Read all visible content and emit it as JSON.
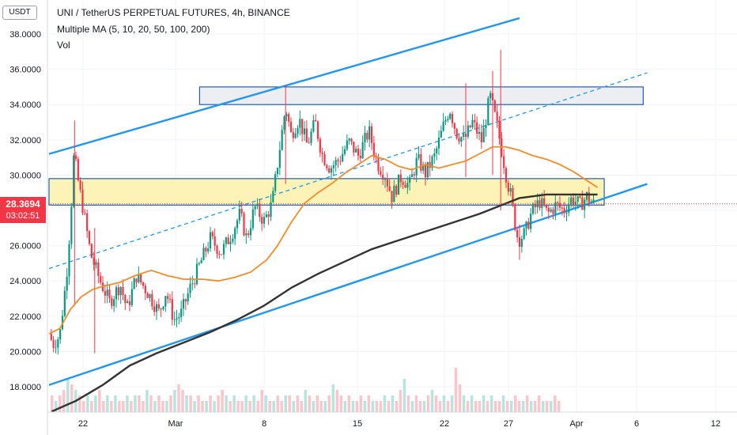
{
  "chart_data": {
    "type": "candlestick",
    "title": "UNI / TetherUS PERPETUAL FUTURES, 4h, BINANCE",
    "indicators": [
      "Multiple MA (5, 10, 20, 50, 100, 200)",
      "Vol"
    ],
    "currency": "USDT",
    "last_price": "28.3694",
    "countdown": "03:02:51",
    "y_axis": {
      "range": [
        16.5,
        39.0
      ],
      "ticks": [
        38,
        36,
        34,
        32,
        30,
        28,
        26,
        24,
        22,
        20,
        18
      ],
      "tick_labels": [
        "38.0000",
        "36.0000",
        "34.0000",
        "32.0000",
        "30.0000",
        "28.0000",
        "26.0000",
        "24.0000",
        "22.0000",
        "20.0000",
        "18.0000"
      ]
    },
    "x_axis": {
      "tick_labels": [
        "22",
        "Mar",
        "8",
        "15",
        "22",
        "27",
        "Apr",
        "6",
        "12"
      ]
    },
    "price_path": [
      [
        0,
        21.0
      ],
      [
        0.3,
        20.4
      ],
      [
        0.8,
        20.9
      ],
      [
        1.3,
        24.3
      ],
      [
        1.6,
        27.5
      ],
      [
        1.85,
        31.2
      ],
      [
        2.2,
        29.5
      ],
      [
        2.6,
        27.8
      ],
      [
        3.1,
        25.5
      ],
      [
        3.8,
        24.0
      ],
      [
        4.5,
        22.8
      ],
      [
        5.3,
        23.8
      ],
      [
        5.8,
        22.4
      ],
      [
        6.5,
        24.3
      ],
      [
        7.3,
        23.4
      ],
      [
        8.2,
        22.2
      ],
      [
        8.7,
        23.4
      ],
      [
        9.3,
        21.8
      ],
      [
        9.8,
        22.1
      ],
      [
        10.5,
        23.6
      ],
      [
        11.2,
        24.9
      ],
      [
        12.0,
        26.4
      ],
      [
        12.8,
        25.6
      ],
      [
        13.6,
        26.7
      ],
      [
        14.2,
        27.8
      ],
      [
        14.7,
        26.4
      ],
      [
        15.3,
        28.2
      ],
      [
        16.0,
        27.4
      ],
      [
        16.6,
        28.4
      ],
      [
        17.1,
        31.2
      ],
      [
        17.6,
        33.9
      ],
      [
        18.0,
        32.3
      ],
      [
        18.6,
        33.2
      ],
      [
        19.2,
        31.7
      ],
      [
        19.8,
        33.0
      ],
      [
        20.3,
        31.2
      ],
      [
        20.9,
        30.4
      ],
      [
        21.6,
        30.9
      ],
      [
        22.3,
        31.9
      ],
      [
        23.0,
        31.1
      ],
      [
        23.8,
        32.5
      ],
      [
        24.4,
        30.7
      ],
      [
        25.0,
        30.0
      ],
      [
        25.5,
        28.8
      ],
      [
        26.2,
        29.9
      ],
      [
        26.8,
        29.4
      ],
      [
        27.4,
        30.9
      ],
      [
        28.0,
        30.1
      ],
      [
        28.7,
        31.1
      ],
      [
        29.3,
        32.7
      ],
      [
        29.8,
        33.8
      ],
      [
        30.3,
        32.4
      ],
      [
        30.9,
        32.0
      ],
      [
        31.5,
        33.0
      ],
      [
        32.2,
        31.9
      ],
      [
        32.8,
        34.5
      ],
      [
        33.3,
        32.9
      ],
      [
        33.7,
        31.3
      ],
      [
        34.1,
        29.6
      ],
      [
        34.4,
        28.7
      ],
      [
        34.6,
        27.5
      ],
      [
        34.9,
        26.3
      ],
      [
        35.4,
        26.7
      ],
      [
        35.9,
        27.9
      ],
      [
        36.5,
        28.5
      ],
      [
        37.1,
        27.8
      ],
      [
        37.7,
        28.3
      ],
      [
        38.3,
        28.0
      ],
      [
        38.9,
        28.7
      ],
      [
        39.5,
        28.3
      ],
      [
        40.0,
        28.8
      ],
      [
        40.5,
        28.37
      ]
    ],
    "wicks": [
      [
        1.9,
        22.6,
        33.1
      ],
      [
        3.4,
        19.9,
        27.0
      ],
      [
        17.6,
        29.5,
        35.1
      ],
      [
        31.0,
        29.9,
        35.2
      ],
      [
        33.0,
        30.0,
        35.9
      ],
      [
        33.6,
        28.0,
        37.1
      ],
      [
        35.0,
        25.2,
        27.2
      ]
    ],
    "ma50": [
      [
        0,
        21.0
      ],
      [
        0.8,
        21.3
      ],
      [
        1.6,
        22.4
      ],
      [
        2.4,
        23.1
      ],
      [
        3.2,
        23.5
      ],
      [
        4.0,
        23.7
      ],
      [
        5.2,
        23.9
      ],
      [
        6.4,
        24.3
      ],
      [
        7.6,
        24.6
      ],
      [
        8.8,
        24.3
      ],
      [
        10.0,
        24.1
      ],
      [
        11.4,
        24.1
      ],
      [
        12.6,
        24.0
      ],
      [
        13.8,
        24.2
      ],
      [
        15.0,
        24.5
      ],
      [
        16.2,
        25.2
      ],
      [
        17.0,
        26.0
      ],
      [
        18.0,
        27.3
      ],
      [
        19.0,
        28.4
      ],
      [
        20.0,
        29.0
      ],
      [
        21.0,
        29.5
      ],
      [
        22.0,
        30.1
      ],
      [
        23.0,
        30.6
      ],
      [
        24.0,
        31.1
      ],
      [
        25.0,
        30.9
      ],
      [
        26.0,
        30.5
      ],
      [
        27.0,
        30.3
      ],
      [
        28.0,
        30.6
      ],
      [
        29.0,
        30.4
      ],
      [
        30.0,
        30.6
      ],
      [
        31.0,
        30.8
      ],
      [
        32.0,
        31.2
      ],
      [
        33.0,
        31.6
      ],
      [
        34.0,
        31.6
      ],
      [
        35.0,
        31.4
      ],
      [
        36.0,
        31.1
      ],
      [
        37.0,
        30.9
      ],
      [
        38.0,
        30.6
      ],
      [
        39.0,
        30.2
      ],
      [
        40.0,
        29.7
      ],
      [
        40.8,
        29.3
      ]
    ],
    "ma200": [
      [
        0.2,
        16.6
      ],
      [
        2.0,
        17.2
      ],
      [
        4.0,
        18.1
      ],
      [
        6.0,
        19.2
      ],
      [
        8.0,
        19.9
      ],
      [
        10.0,
        20.5
      ],
      [
        12.0,
        21.1
      ],
      [
        14.0,
        21.8
      ],
      [
        16.0,
        22.6
      ],
      [
        18.0,
        23.6
      ],
      [
        20.0,
        24.4
      ],
      [
        22.0,
        25.1
      ],
      [
        24.0,
        25.8
      ],
      [
        26.0,
        26.3
      ],
      [
        28.0,
        26.8
      ],
      [
        30.0,
        27.3
      ],
      [
        32.0,
        27.8
      ],
      [
        34.0,
        28.4
      ],
      [
        35.0,
        28.7
      ],
      [
        36.0,
        28.8
      ],
      [
        37.0,
        28.9
      ],
      [
        38.5,
        28.9
      ],
      [
        40.0,
        28.9
      ],
      [
        40.8,
        28.9
      ]
    ],
    "trend_lines": {
      "upper_channel": [
        [
          0,
          31.2
        ],
        [
          35.0,
          38.9
        ]
      ],
      "lower_channel": [
        [
          0,
          18.1
        ],
        [
          44.5,
          29.5
        ]
      ],
      "mid_dashed": [
        [
          0,
          24.7
        ],
        [
          44.5,
          35.8
        ]
      ]
    },
    "zones": [
      {
        "name": "resistance",
        "x": [
          11.2,
          44.2
        ],
        "y": [
          34.0,
          35.0
        ],
        "fill": "#eceef2"
      },
      {
        "name": "support",
        "x": [
          0,
          41.3
        ],
        "y": [
          28.3,
          29.8
        ],
        "fill": "#fdf3b6"
      }
    ],
    "volume": [
      3,
      2,
      3,
      4,
      6,
      5,
      4,
      3,
      2,
      3,
      2,
      3,
      4,
      2,
      3,
      2,
      3,
      2,
      2,
      3,
      2,
      3,
      3,
      2,
      4,
      3,
      2,
      3,
      2,
      2,
      3,
      4,
      5,
      4,
      3,
      3,
      2,
      3,
      2,
      2,
      3,
      2,
      3,
      4,
      3,
      2,
      3,
      2,
      2,
      3,
      2,
      3,
      2,
      4,
      3,
      2,
      2,
      3,
      2,
      3,
      3,
      2,
      3,
      2,
      4,
      3,
      2,
      3,
      2,
      2,
      3,
      5,
      4,
      3,
      2,
      3,
      2,
      2,
      3,
      2,
      3,
      2,
      2,
      2,
      3,
      2,
      3,
      2,
      4,
      6,
      3,
      2,
      3,
      2,
      2,
      3,
      4,
      3,
      2,
      3,
      2,
      3,
      8,
      5,
      3,
      2,
      3,
      2,
      2,
      3,
      2,
      3,
      2,
      2,
      3,
      2,
      2,
      3,
      2,
      2,
      3,
      2,
      2,
      3,
      2,
      2,
      2,
      3,
      2
    ],
    "colors": {
      "up": "#089981",
      "down": "#f23645",
      "channel": "#2196f3",
      "ma50": "#f28c28",
      "ma200": "#333333",
      "zone_border": "#1e5fbf",
      "grid": "#f0f3fa",
      "axis_text": "#131722"
    }
  }
}
